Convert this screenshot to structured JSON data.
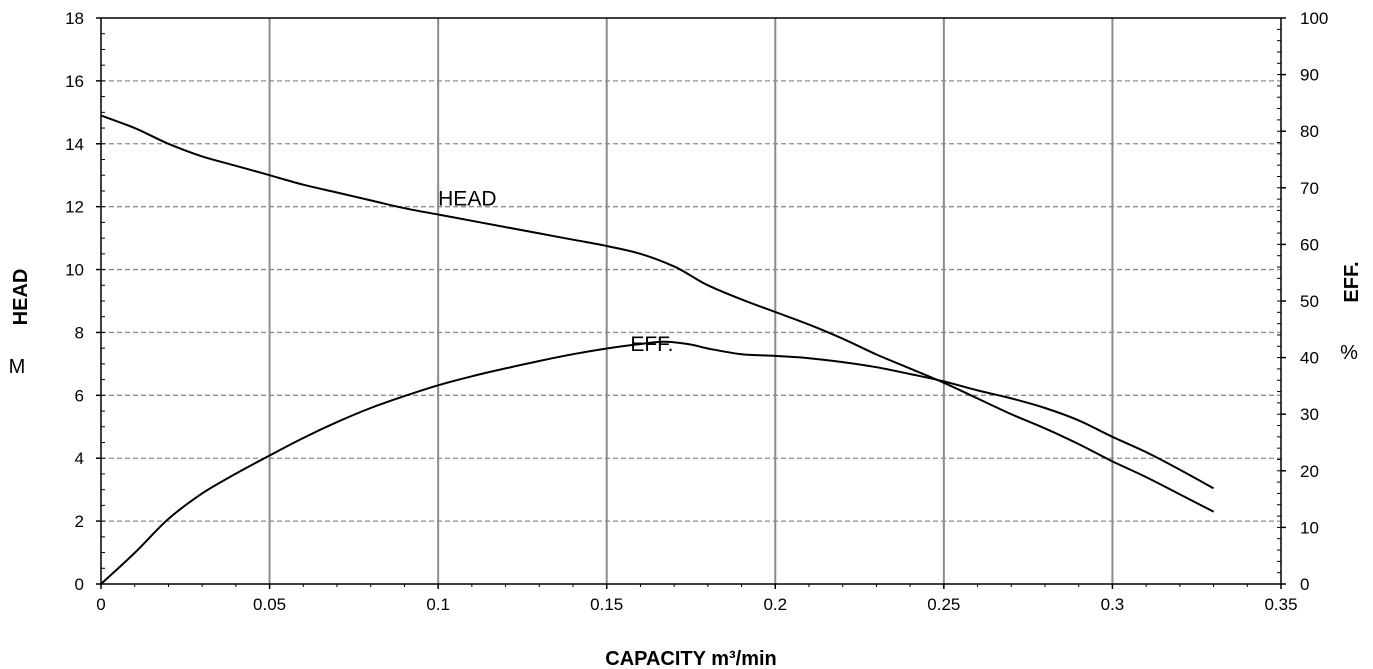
{
  "chart_data": {
    "type": "line",
    "xlabel": "CAPACITY m³/min",
    "ylabel_left": "HEAD",
    "ylabel_left_unit": "M",
    "ylabel_right": "EFF.",
    "ylabel_right_unit": "%",
    "xlim": [
      0,
      0.35
    ],
    "ylim_left": [
      0,
      18
    ],
    "ylim_right": [
      0,
      100
    ],
    "x_ticks": [
      "0",
      "0.05",
      "0.1",
      "0.15",
      "0.2",
      "0.25",
      "0.3",
      "0.35"
    ],
    "y_left_ticks": [
      "0",
      "2",
      "4",
      "6",
      "8",
      "10",
      "12",
      "14",
      "16",
      "18"
    ],
    "y_right_ticks": [
      "0",
      "10",
      "20",
      "30",
      "40",
      "50",
      "60",
      "70",
      "80",
      "90",
      "100"
    ],
    "grid": "vertical solid, horizontal dashed",
    "series": [
      {
        "name": "HEAD",
        "axis": "left",
        "x": [
          0,
          0.01,
          0.02,
          0.03,
          0.04,
          0.05,
          0.06,
          0.07,
          0.08,
          0.09,
          0.1,
          0.11,
          0.12,
          0.13,
          0.14,
          0.15,
          0.16,
          0.17,
          0.175,
          0.18,
          0.19,
          0.2,
          0.21,
          0.22,
          0.23,
          0.24,
          0.25,
          0.26,
          0.27,
          0.28,
          0.29,
          0.3,
          0.31,
          0.32,
          0.33
        ],
        "values": [
          14.9,
          14.5,
          14.0,
          13.6,
          13.3,
          13.0,
          12.7,
          12.45,
          12.2,
          11.95,
          11.75,
          11.55,
          11.35,
          11.15,
          10.95,
          10.75,
          10.5,
          10.1,
          9.8,
          9.5,
          9.05,
          8.65,
          8.25,
          7.8,
          7.3,
          6.85,
          6.4,
          5.9,
          5.4,
          4.95,
          4.45,
          3.9,
          3.4,
          2.85,
          2.3
        ]
      },
      {
        "name": "EFF.",
        "axis": "right",
        "x": [
          0,
          0.01,
          0.02,
          0.03,
          0.04,
          0.05,
          0.06,
          0.07,
          0.08,
          0.09,
          0.1,
          0.11,
          0.12,
          0.13,
          0.14,
          0.15,
          0.16,
          0.167,
          0.175,
          0.18,
          0.19,
          0.2,
          0.21,
          0.22,
          0.23,
          0.24,
          0.25,
          0.26,
          0.27,
          0.28,
          0.29,
          0.3,
          0.31,
          0.32,
          0.33
        ],
        "values": [
          0,
          5.5,
          11.5,
          16.0,
          19.5,
          22.7,
          25.8,
          28.6,
          31.1,
          33.2,
          35.1,
          36.7,
          38.1,
          39.4,
          40.6,
          41.6,
          42.4,
          42.8,
          42.3,
          41.6,
          40.6,
          40.3,
          39.9,
          39.2,
          38.3,
          37.1,
          35.8,
          34.2,
          32.8,
          31.1,
          28.9,
          26.0,
          23.3,
          20.2,
          16.9
        ]
      }
    ],
    "annotations": [
      {
        "text": "HEAD",
        "series": "HEAD"
      },
      {
        "text": "EFF.",
        "series": "EFF."
      }
    ]
  }
}
